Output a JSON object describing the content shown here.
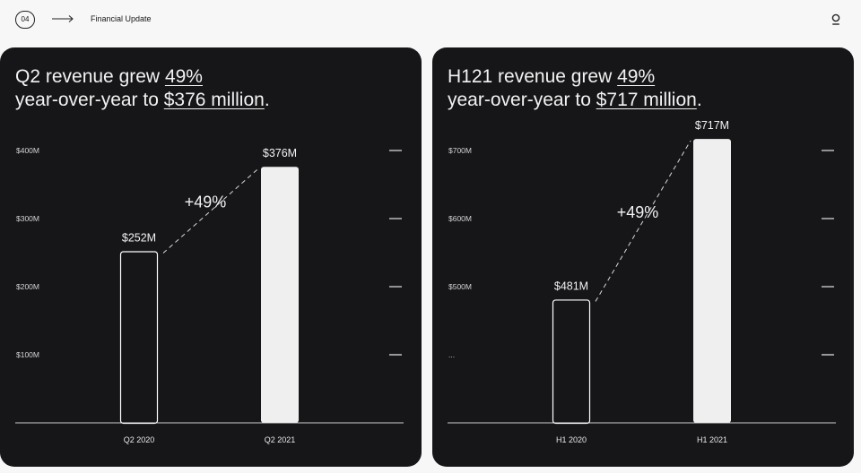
{
  "header": {
    "page_number": "04",
    "section_title": "Financial Update",
    "icons": {
      "arrow": "arrow-right-icon",
      "logo": "brand-logo-icon"
    }
  },
  "colors": {
    "panel_bg": "#161518",
    "bar_fill": "#efefef",
    "bar_outline": "#ffffff",
    "text": "#f2f2f2"
  },
  "panels": [
    {
      "headline": {
        "line1_prefix": "Q2 revenue grew ",
        "line1_highlight": "49%",
        "line2_prefix": "year-over-year to ",
        "line2_highlight": "$376 million",
        "line2_suffix": "."
      }
    },
    {
      "headline": {
        "line1_prefix": "H121 revenue grew ",
        "line1_highlight": "49%",
        "line2_prefix": "year-over-year to ",
        "line2_highlight": "$717 million",
        "line2_suffix": "."
      }
    }
  ],
  "chart_data": [
    {
      "type": "bar",
      "categories": [
        "Q2 2020",
        "Q2 2021"
      ],
      "values": [
        252,
        376
      ],
      "value_labels": [
        "$252M",
        "$376M"
      ],
      "bar_styles": [
        "outline",
        "filled"
      ],
      "growth_label": "+49%",
      "yticks": [
        100,
        200,
        300,
        400
      ],
      "ytick_labels": [
        "$100M",
        "$200M",
        "$300M",
        "$400M"
      ],
      "ylim": [
        0,
        400
      ],
      "grid": false
    },
    {
      "type": "bar",
      "categories": [
        "H1 2020",
        "H1 2021"
      ],
      "values": [
        481,
        717
      ],
      "value_labels": [
        "$481M",
        "$717M"
      ],
      "bar_styles": [
        "outline",
        "filled"
      ],
      "growth_label": "+49%",
      "yticks": [
        400,
        500,
        600,
        700
      ],
      "ytick_labels": [
        "...",
        "$500M",
        "$600M",
        "$700M"
      ],
      "ylim": [
        300,
        700
      ],
      "grid": false
    }
  ]
}
